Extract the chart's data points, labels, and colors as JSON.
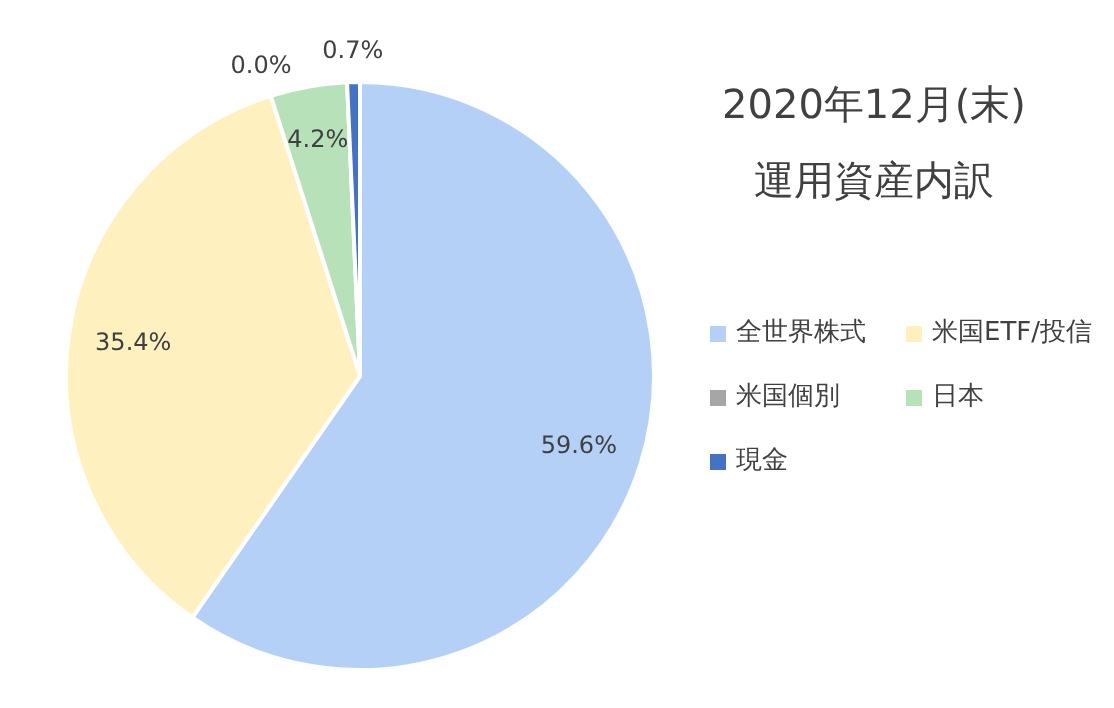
{
  "chart_data": {
    "type": "pie",
    "title": "2020年12月(末)",
    "subtitle": "運用資産内訳",
    "categories": [
      "全世界株式",
      "米国ETF/投信",
      "米国個別",
      "日本",
      "現金"
    ],
    "values": [
      59.6,
      35.4,
      0.0,
      4.2,
      0.7
    ],
    "colors": [
      "#b4d0f6",
      "#fff1bf",
      "#a6a6a6",
      "#b7e2b9",
      "#4472c4"
    ],
    "value_labels": [
      "59.6%",
      "35.4%",
      "0.0%",
      "4.2%",
      "0.7%"
    ],
    "legend": "right"
  }
}
